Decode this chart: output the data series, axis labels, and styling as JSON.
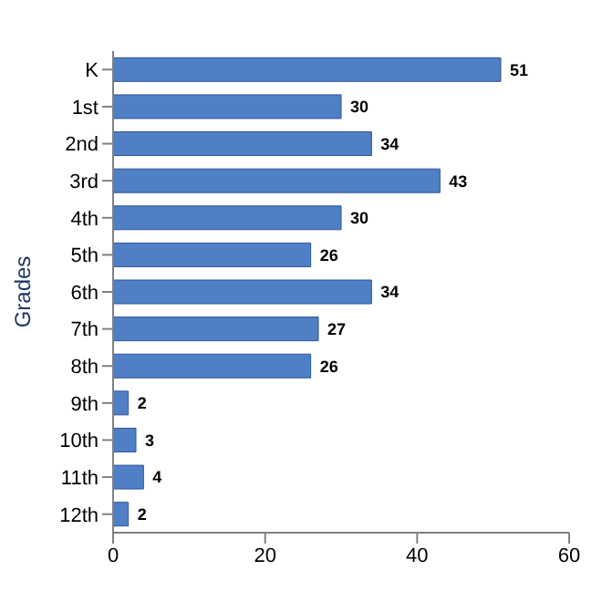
{
  "chart_data": {
    "type": "bar",
    "orientation": "horizontal",
    "ylabel": "Grades",
    "categories": [
      "K",
      "1st",
      "2nd",
      "3rd",
      "4th",
      "5th",
      "6th",
      "7th",
      "8th",
      "9th",
      "10th",
      "11th",
      "12th"
    ],
    "values": [
      51,
      30,
      34,
      43,
      30,
      26,
      34,
      27,
      26,
      2,
      3,
      4,
      2
    ],
    "color": "#4f7fc4",
    "xlim": [
      0,
      60
    ],
    "xticks": [
      0,
      20,
      40,
      60
    ],
    "grid": false,
    "data_labels": true
  }
}
